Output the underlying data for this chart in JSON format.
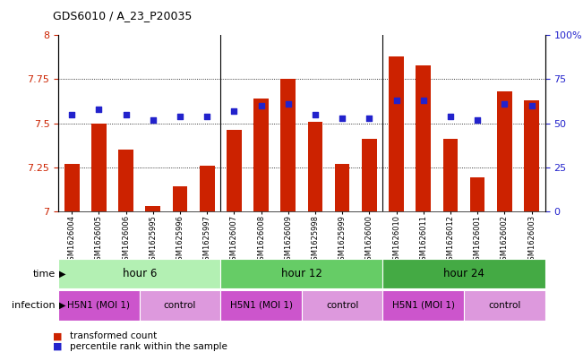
{
  "title": "GDS6010 / A_23_P20035",
  "samples": [
    "GSM1626004",
    "GSM1626005",
    "GSM1626006",
    "GSM1625995",
    "GSM1625996",
    "GSM1625997",
    "GSM1626007",
    "GSM1626008",
    "GSM1626009",
    "GSM1625998",
    "GSM1625999",
    "GSM1626000",
    "GSM1626010",
    "GSM1626011",
    "GSM1626012",
    "GSM1626001",
    "GSM1626002",
    "GSM1626003"
  ],
  "bar_values": [
    7.27,
    7.5,
    7.35,
    7.03,
    7.14,
    7.26,
    7.46,
    7.64,
    7.75,
    7.51,
    7.27,
    7.41,
    7.88,
    7.83,
    7.41,
    7.19,
    7.68,
    7.63
  ],
  "dot_values": [
    55,
    58,
    55,
    52,
    54,
    54,
    57,
    60,
    61,
    55,
    53,
    53,
    63,
    63,
    54,
    52,
    61,
    60
  ],
  "bar_color": "#cc2200",
  "dot_color": "#2222cc",
  "ylim_left": [
    7.0,
    8.0
  ],
  "ylim_right": [
    0,
    100
  ],
  "yticks_left": [
    7.0,
    7.25,
    7.5,
    7.75,
    8.0
  ],
  "ytick_labels_left": [
    "7",
    "7.25",
    "7.5",
    "7.75",
    "8"
  ],
  "yticks_right": [
    0,
    25,
    50,
    75,
    100
  ],
  "ytick_labels_right": [
    "0",
    "25",
    "50",
    "75",
    "100%"
  ],
  "hlines": [
    7.25,
    7.5,
    7.75
  ],
  "left_axis_color": "#cc2200",
  "right_axis_color": "#2222cc",
  "group_starts": [
    0,
    6,
    12
  ],
  "group_ends": [
    5,
    11,
    17
  ],
  "group_labels": [
    "hour 6",
    "hour 12",
    "hour 24"
  ],
  "group_colors": [
    "#b3f0b3",
    "#66cc66",
    "#44aa44"
  ],
  "inf_starts": [
    0,
    3,
    6,
    9,
    12,
    15
  ],
  "inf_ends": [
    2,
    5,
    8,
    11,
    14,
    17
  ],
  "inf_labels": [
    "H5N1 (MOI 1)",
    "control",
    "H5N1 (MOI 1)",
    "control",
    "H5N1 (MOI 1)",
    "control"
  ],
  "inf_colors": [
    "#cc55cc",
    "#dd99dd",
    "#cc55cc",
    "#dd99dd",
    "#cc55cc",
    "#dd99dd"
  ],
  "legend_labels": [
    "transformed count",
    "percentile rank within the sample"
  ],
  "legend_colors": [
    "#cc2200",
    "#2222cc"
  ]
}
